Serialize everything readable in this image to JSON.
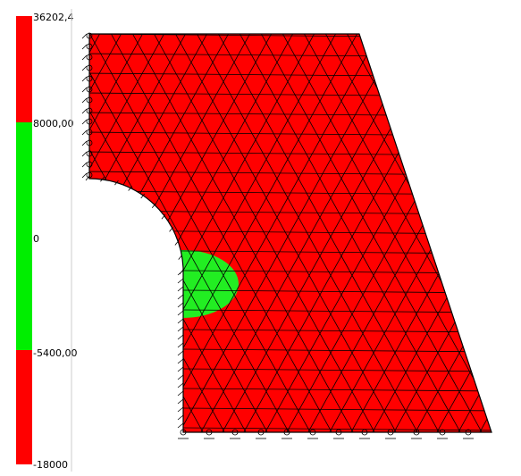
{
  "legend": {
    "labels": [
      "36202,4",
      "8000,00",
      "0",
      "-5400,00",
      "-18000"
    ]
  }
}
